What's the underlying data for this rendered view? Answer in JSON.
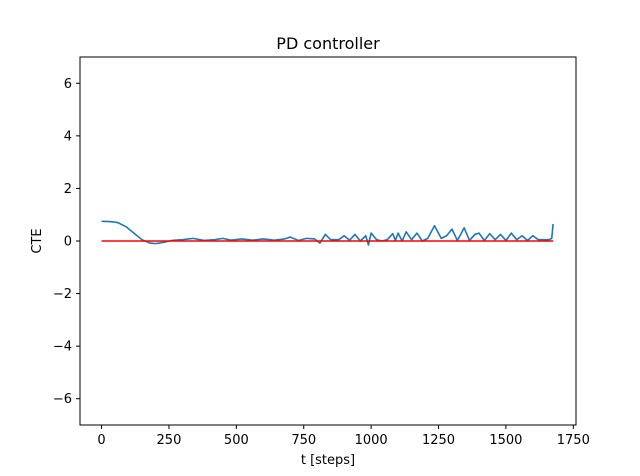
{
  "chart_data": {
    "type": "line",
    "title": "PD controller",
    "xlabel": "t [steps]",
    "ylabel": "CTE",
    "xlim": [
      -80,
      1760
    ],
    "ylim": [
      -7,
      7
    ],
    "x_ticks": [
      0,
      250,
      500,
      750,
      1000,
      1250,
      1500,
      1750
    ],
    "y_ticks": [
      -6,
      -4,
      -2,
      0,
      2,
      4,
      6
    ],
    "grid": false,
    "series": [
      {
        "color": "#1f77b4",
        "x": [
          0,
          30,
          60,
          90,
          120,
          150,
          180,
          200,
          230,
          260,
          300,
          340,
          380,
          420,
          450,
          480,
          520,
          560,
          600,
          640,
          680,
          700,
          730,
          760,
          790,
          810,
          830,
          850,
          880,
          900,
          920,
          940,
          960,
          980,
          990,
          1000,
          1020,
          1040,
          1060,
          1080,
          1090,
          1100,
          1115,
          1130,
          1150,
          1170,
          1190,
          1210,
          1235,
          1260,
          1280,
          1300,
          1320,
          1345,
          1365,
          1385,
          1400,
          1420,
          1440,
          1460,
          1480,
          1500,
          1520,
          1540,
          1560,
          1580,
          1600,
          1620,
          1640,
          1660,
          1670,
          1675
        ],
        "y": [
          0.75,
          0.74,
          0.7,
          0.55,
          0.3,
          0.05,
          -0.08,
          -0.1,
          -0.05,
          0.02,
          0.05,
          0.1,
          0.02,
          0.05,
          0.1,
          0.03,
          0.08,
          0.03,
          0.08,
          0.03,
          0.08,
          0.15,
          0.02,
          0.1,
          0.08,
          -0.08,
          0.25,
          0.05,
          0.05,
          0.2,
          0.03,
          0.25,
          0.0,
          0.2,
          -0.15,
          0.3,
          0.05,
          0.0,
          0.05,
          0.28,
          0.02,
          0.3,
          0.0,
          0.35,
          0.05,
          0.3,
          0.0,
          0.1,
          0.58,
          0.1,
          0.2,
          0.45,
          0.02,
          0.5,
          0.02,
          0.25,
          0.3,
          0.02,
          0.28,
          0.05,
          0.25,
          0.02,
          0.3,
          0.05,
          0.2,
          0.02,
          0.2,
          0.05,
          0.05,
          0.05,
          0.1,
          0.65
        ]
      },
      {
        "color": "#ff0000",
        "x": [
          0,
          1675
        ],
        "y": [
          0,
          0
        ]
      }
    ]
  }
}
